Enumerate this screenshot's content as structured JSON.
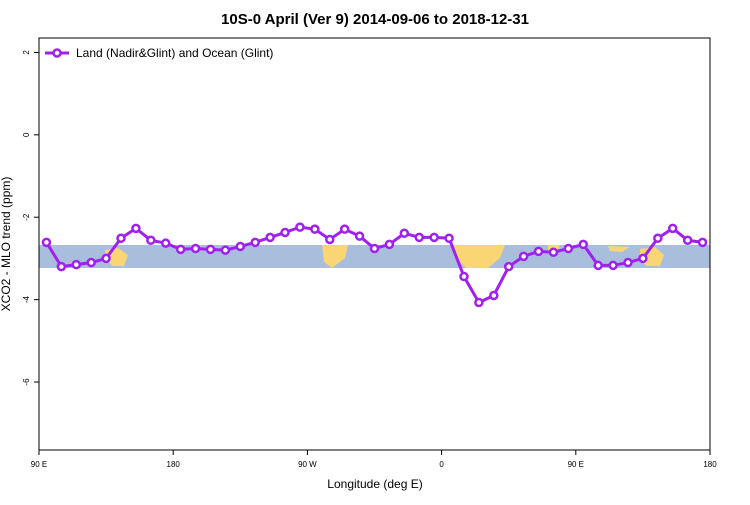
{
  "chart_data": {
    "type": "line",
    "title": "10S-0 April (Ver 9)   2014-09-06 to 2018-12-31",
    "xlabel": "Longitude (deg E)",
    "ylabel": "XCO2 - MLO trend (ppm)",
    "x": [
      95,
      105,
      115,
      125,
      135,
      145,
      155,
      165,
      175,
      185,
      195,
      205,
      215,
      225,
      235,
      245,
      255,
      265,
      275,
      285,
      295,
      305,
      315,
      325,
      335,
      345,
      355,
      365,
      375,
      385,
      395,
      405,
      415,
      425,
      435,
      445,
      455,
      465,
      475,
      485,
      495,
      505,
      515,
      525,
      535
    ],
    "series": [
      {
        "name": "Land (Nadir&Glint) and Ocean (Glint)",
        "color": "#a020f0",
        "values": [
          -2.61,
          -3.2,
          -3.15,
          -3.1,
          -3.0,
          -2.51,
          -2.27,
          -2.56,
          -2.63,
          -2.78,
          -2.76,
          -2.78,
          -2.8,
          -2.71,
          -2.61,
          -2.49,
          -2.37,
          -2.24,
          -2.29,
          -2.54,
          -2.29,
          -2.46,
          -2.76,
          -2.66,
          -2.39,
          -2.49,
          -2.49,
          -2.51,
          -3.44,
          -4.07,
          -3.9,
          -3.2,
          -2.95,
          -2.83,
          -2.85,
          -2.76,
          -2.66,
          -3.17,
          -3.17,
          -3.1,
          -3.0,
          -2.51,
          -2.27,
          -2.56,
          -2.61
        ]
      }
    ],
    "xlim": [
      90,
      540
    ],
    "xticks": [
      {
        "value": 90,
        "label": "90 E"
      },
      180,
      {
        "value": 270,
        "label": "90 W"
      },
      {
        "value": 360,
        "label": "0"
      },
      {
        "value": 450,
        "label": "90 E"
      },
      {
        "value": 540,
        "label": "180"
      }
    ],
    "ylim": [
      -7.65,
      2.35
    ],
    "yticks": [
      2,
      0,
      -2,
      -4,
      -6
    ],
    "legend": "top-left"
  }
}
